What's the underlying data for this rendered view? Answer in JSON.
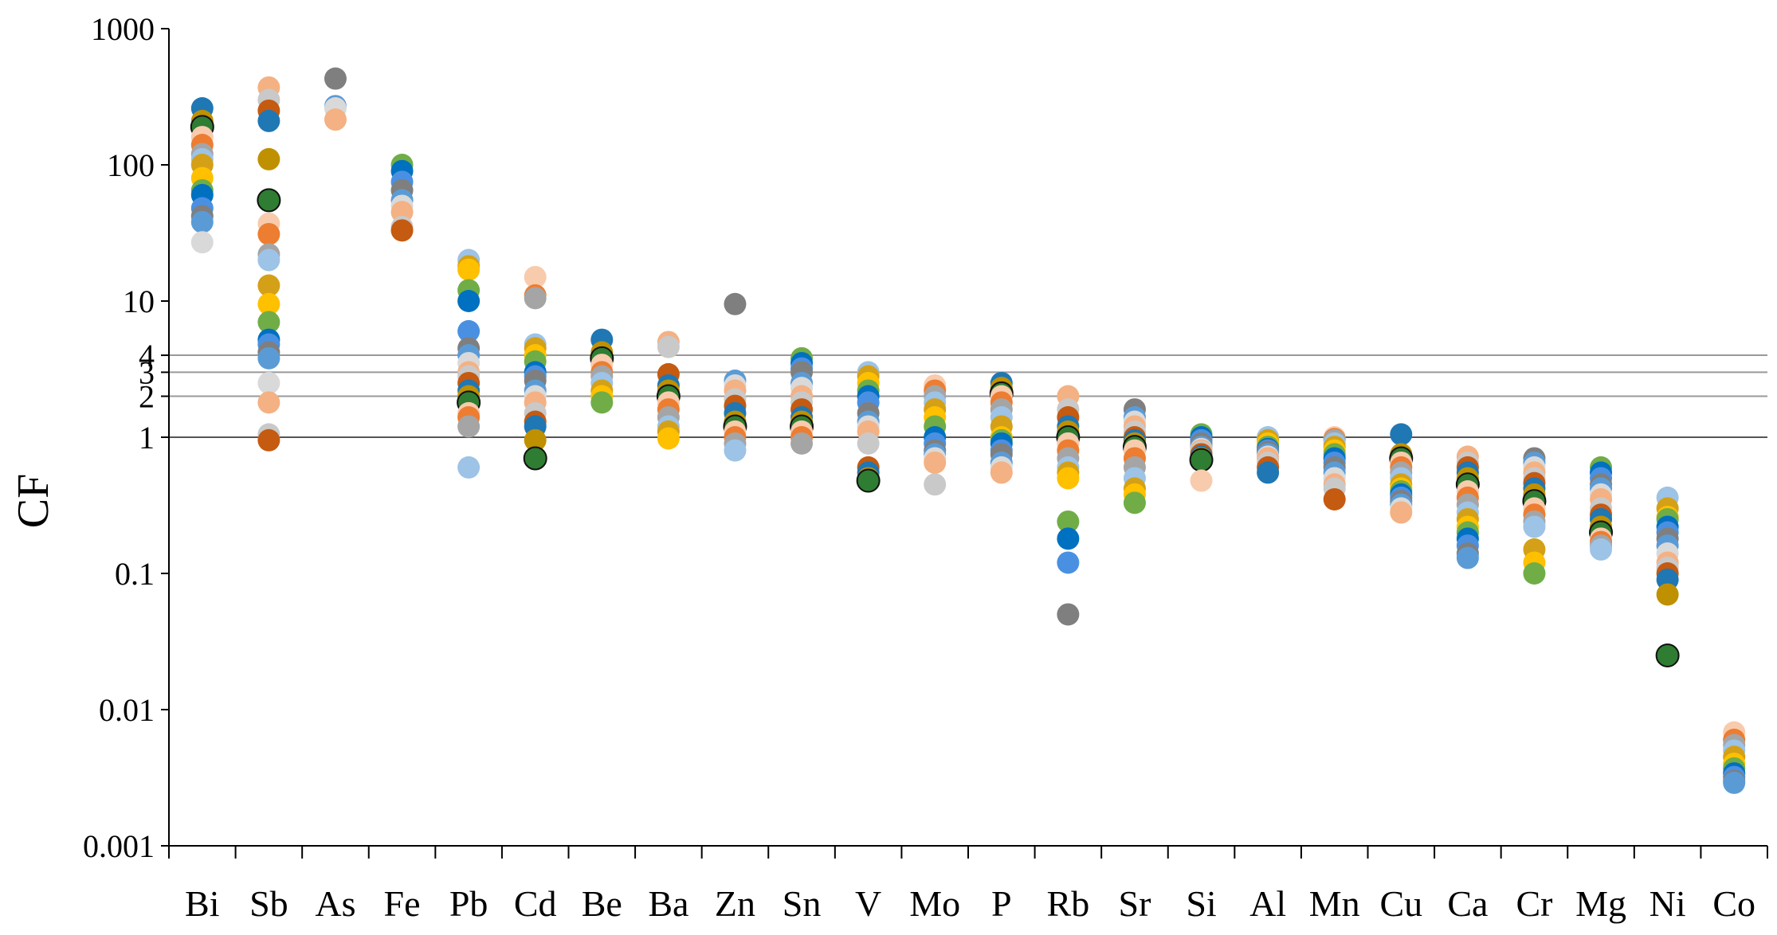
{
  "chart_data": {
    "type": "scatter",
    "ylabel": "CF",
    "yscale": "log",
    "ylim": [
      0.001,
      1000
    ],
    "y_ticks": [
      {
        "value": 1000,
        "label": "1000"
      },
      {
        "value": 100,
        "label": "100"
      },
      {
        "value": 10,
        "label": "10"
      },
      {
        "value": 4,
        "label": "4"
      },
      {
        "value": 3,
        "label": "3"
      },
      {
        "value": 2,
        "label": "2"
      },
      {
        "value": 1,
        "label": "1"
      },
      {
        "value": 0.1,
        "label": "0.1"
      },
      {
        "value": 0.01,
        "label": "0.01"
      },
      {
        "value": 0.001,
        "label": "0.001"
      }
    ],
    "reference_lines": [
      1,
      2,
      3,
      4
    ],
    "categories": [
      "Bi",
      "Sb",
      "As",
      "Fe",
      "Pb",
      "Cd",
      "Be",
      "Ba",
      "Zn",
      "Sn",
      "V",
      "Mo",
      "P",
      "Rb",
      "Sr",
      "Si",
      "Al",
      "Mn",
      "Cu",
      "Ca",
      "Cr",
      "Mg",
      "Ni",
      "Co"
    ],
    "grid": false,
    "points": {
      "Bi": [
        260,
        210,
        190,
        160,
        140,
        120,
        110,
        100,
        80,
        65,
        60,
        48,
        42,
        38,
        27
      ],
      "Sb": [
        370,
        300,
        250,
        210,
        110,
        55,
        37,
        31,
        22,
        20,
        13,
        9.5,
        7,
        5.2,
        4.8,
        4.2,
        3.8,
        2.5,
        1.8,
        1.05,
        0.95
      ],
      "As": [
        430,
        270,
        260,
        215
      ],
      "Fe": [
        100,
        90,
        75,
        65,
        55,
        50,
        45,
        35,
        33
      ],
      "Pb": [
        20,
        18,
        17,
        12,
        10,
        6,
        4.5,
        4,
        3.5,
        3,
        2.8,
        2.5,
        2.2,
        2,
        1.8,
        1.5,
        1.4,
        1.2,
        0.6
      ],
      "Cd": [
        15,
        11,
        10.5,
        4.8,
        4.5,
        4,
        3.6,
        3,
        2.8,
        2.6,
        2.2,
        2,
        1.8,
        1.5,
        1.3,
        1.2,
        0.95,
        0.7
      ],
      "Be": [
        5.2,
        4.2,
        3.8,
        3.4,
        3.0,
        2.8,
        2.5,
        2.2,
        2.0,
        1.8
      ],
      "Ba": [
        5.0,
        4.6,
        2.9,
        2.4,
        2.2,
        2.0,
        1.8,
        1.6,
        1.4,
        1.2,
        1.1,
        0.98
      ],
      "Zn": [
        9.5,
        2.6,
        2.4,
        2.2,
        1.9,
        1.7,
        1.5,
        1.3,
        1.2,
        1.1,
        1.0,
        0.9,
        0.8
      ],
      "Sn": [
        3.8,
        3.5,
        3.2,
        3.0,
        2.5,
        2.3,
        2.0,
        1.8,
        1.6,
        1.4,
        1.3,
        1.2,
        1.1,
        1.0,
        0.9
      ],
      "V": [
        3.0,
        2.8,
        2.5,
        2.2,
        2.0,
        1.8,
        1.5,
        1.3,
        1.2,
        1.1,
        0.9,
        0.6,
        0.55,
        0.5,
        0.48
      ],
      "Mo": [
        2.4,
        2.2,
        2.0,
        1.8,
        1.6,
        1.4,
        1.2,
        1.0,
        0.9,
        0.8,
        0.75,
        0.7,
        0.65,
        0.45
      ],
      "P": [
        2.5,
        2.3,
        2.1,
        2.0,
        1.8,
        1.6,
        1.4,
        1.2,
        1.0,
        0.95,
        0.9,
        0.8,
        0.75,
        0.65,
        0.6,
        0.55
      ],
      "Rb": [
        2.0,
        1.6,
        1.4,
        1.2,
        1.1,
        1.0,
        0.9,
        0.8,
        0.7,
        0.6,
        0.55,
        0.5,
        0.24,
        0.18,
        0.12,
        0.05
      ],
      "Sr": [
        1.6,
        1.4,
        1.3,
        1.2,
        1.1,
        1.0,
        0.95,
        0.9,
        0.85,
        0.8,
        0.7,
        0.6,
        0.5,
        0.42,
        0.38,
        0.33
      ],
      "Si": [
        1.05,
        1.0,
        0.95,
        0.9,
        0.85,
        0.82,
        0.8,
        0.78,
        0.75,
        0.72,
        0.7,
        0.68,
        0.48
      ],
      "Al": [
        1.0,
        0.95,
        0.9,
        0.85,
        0.82,
        0.8,
        0.78,
        0.75,
        0.72,
        0.7,
        0.65,
        0.6,
        0.55
      ],
      "Mn": [
        1.0,
        0.97,
        0.95,
        0.9,
        0.85,
        0.8,
        0.75,
        0.7,
        0.65,
        0.6,
        0.55,
        0.5,
        0.45,
        0.42,
        0.35
      ],
      "Cu": [
        1.05,
        0.75,
        0.7,
        0.65,
        0.6,
        0.55,
        0.5,
        0.45,
        0.42,
        0.4,
        0.38,
        0.36,
        0.34,
        0.32,
        0.3,
        0.28
      ],
      "Ca": [
        0.72,
        0.65,
        0.6,
        0.55,
        0.5,
        0.45,
        0.4,
        0.36,
        0.32,
        0.28,
        0.25,
        0.22,
        0.2,
        0.18,
        0.16,
        0.14,
        0.13
      ],
      "Cr": [
        0.7,
        0.65,
        0.6,
        0.55,
        0.5,
        0.46,
        0.42,
        0.38,
        0.34,
        0.3,
        0.27,
        0.24,
        0.22,
        0.15,
        0.12,
        0.1
      ],
      "Mg": [
        0.6,
        0.55,
        0.5,
        0.45,
        0.42,
        0.38,
        0.35,
        0.3,
        0.27,
        0.25,
        0.22,
        0.2,
        0.18,
        0.17,
        0.16,
        0.15
      ],
      "Ni": [
        0.36,
        0.3,
        0.26,
        0.25,
        0.22,
        0.2,
        0.18,
        0.16,
        0.14,
        0.12,
        0.11,
        0.1,
        0.09,
        0.07,
        0.025
      ],
      "Co": [
        0.0068,
        0.006,
        0.0055,
        0.005,
        0.0045,
        0.004,
        0.0037,
        0.0034,
        0.0032,
        0.003,
        0.0029
      ]
    },
    "point_colors": [
      "#1F77B4",
      "#4A90E2",
      "#ED7D31",
      "#F4B183",
      "#FFC000",
      "#BF9000",
      "#7F7F7F",
      "#A5A5A5",
      "#C9C9C9",
      "#70AD47",
      "#2E7D32",
      "#5B9BD5",
      "#9DC3E6",
      "#C55A11",
      "#0070C0",
      "#F8CBAD",
      "#D9D9D9",
      "#D4A017"
    ]
  }
}
